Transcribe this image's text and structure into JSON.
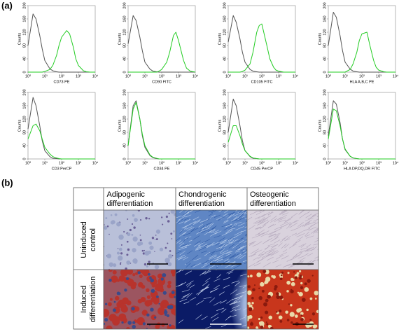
{
  "panel_labels": {
    "a": "(a)",
    "b": "(b)"
  },
  "chart_data": [
    {
      "type": "line",
      "xlabel": "CD73 PE",
      "ylabel": "Counts",
      "xscale": "log",
      "xlim": [
        1,
        10000
      ],
      "xticks": [
        {
          "value": 1,
          "label": "10⁰"
        },
        {
          "value": 10,
          "label": "10¹"
        },
        {
          "value": 100,
          "label": "10²"
        },
        {
          "value": 1000,
          "label": "10³"
        },
        {
          "value": 10000,
          "label": "10⁴"
        }
      ],
      "ylim": [
        0,
        200
      ],
      "yticks": [
        0,
        40,
        80,
        120,
        160,
        200
      ],
      "x": [
        1,
        2,
        3,
        5,
        7,
        10,
        20,
        30,
        50,
        70,
        100,
        200,
        300,
        500,
        700,
        1000,
        2000,
        3000,
        5000,
        10000
      ],
      "series": [
        {
          "color": "#555555",
          "values": [
            80,
            175,
            160,
            110,
            70,
            35,
            10,
            4,
            1,
            0,
            0,
            0,
            0,
            0,
            0,
            0,
            0,
            0,
            0,
            0
          ]
        },
        {
          "color": "#22cc22",
          "values": [
            0,
            0,
            0,
            0,
            0,
            2,
            8,
            20,
            50,
            80,
            105,
            125,
            115,
            75,
            40,
            20,
            4,
            1,
            0,
            0
          ]
        }
      ]
    },
    {
      "type": "line",
      "xlabel": "CD90 FITC",
      "ylabel": "Counts",
      "xscale": "log",
      "xlim": [
        1,
        10000
      ],
      "xticks": [
        {
          "value": 1,
          "label": "10⁰"
        },
        {
          "value": 10,
          "label": "10¹"
        },
        {
          "value": 100,
          "label": "10²"
        },
        {
          "value": 1000,
          "label": "10³"
        },
        {
          "value": 10000,
          "label": "10⁴"
        }
      ],
      "ylim": [
        0,
        200
      ],
      "yticks": [
        0,
        40,
        80,
        120,
        160,
        200
      ],
      "x": [
        1,
        2,
        3,
        5,
        7,
        10,
        20,
        30,
        50,
        70,
        100,
        200,
        300,
        500,
        700,
        1000,
        2000,
        3000,
        5000,
        10000
      ],
      "series": [
        {
          "color": "#555555",
          "values": [
            85,
            170,
            155,
            105,
            65,
            30,
            9,
            3,
            1,
            0,
            0,
            0,
            0,
            0,
            0,
            0,
            0,
            0,
            0,
            0
          ]
        },
        {
          "color": "#22cc22",
          "values": [
            0,
            0,
            0,
            0,
            0,
            0,
            0,
            0,
            0,
            3,
            8,
            30,
            60,
            110,
            120,
            95,
            35,
            12,
            3,
            0
          ]
        }
      ]
    },
    {
      "type": "line",
      "xlabel": "CD105 FITC",
      "ylabel": "Counts",
      "xscale": "log",
      "xlim": [
        1,
        10000
      ],
      "xticks": [
        {
          "value": 1,
          "label": "10⁰"
        },
        {
          "value": 10,
          "label": "10¹"
        },
        {
          "value": 100,
          "label": "10²"
        },
        {
          "value": 1000,
          "label": "10³"
        },
        {
          "value": 10000,
          "label": "10⁴"
        }
      ],
      "ylim": [
        0,
        200
      ],
      "yticks": [
        0,
        40,
        80,
        120,
        160,
        200
      ],
      "x": [
        1,
        2,
        3,
        5,
        7,
        10,
        20,
        30,
        50,
        70,
        100,
        200,
        300,
        500,
        700,
        1000,
        2000,
        3000,
        5000,
        10000
      ],
      "series": [
        {
          "color": "#555555",
          "values": [
            90,
            170,
            150,
            100,
            60,
            30,
            8,
            3,
            1,
            0,
            0,
            0,
            0,
            0,
            0,
            0,
            0,
            0,
            0,
            0
          ]
        },
        {
          "color": "#22cc22",
          "values": [
            0,
            0,
            0,
            0,
            2,
            6,
            25,
            60,
            120,
            140,
            145,
            80,
            40,
            15,
            6,
            3,
            0,
            0,
            0,
            0
          ]
        }
      ]
    },
    {
      "type": "line",
      "xlabel": "HLA A,B,C PE",
      "ylabel": "Counts",
      "xscale": "log",
      "xlim": [
        1,
        10000
      ],
      "xticks": [
        {
          "value": 1,
          "label": "10⁰"
        },
        {
          "value": 10,
          "label": "10¹"
        },
        {
          "value": 100,
          "label": "10²"
        },
        {
          "value": 1000,
          "label": "10³"
        },
        {
          "value": 10000,
          "label": "10⁴"
        }
      ],
      "ylim": [
        0,
        200
      ],
      "yticks": [
        0,
        40,
        80,
        120,
        160,
        200
      ],
      "x": [
        1,
        2,
        3,
        5,
        7,
        10,
        20,
        30,
        50,
        70,
        100,
        200,
        300,
        500,
        700,
        1000,
        2000,
        3000,
        5000,
        10000
      ],
      "series": [
        {
          "color": "#555555",
          "values": [
            80,
            180,
            165,
            110,
            65,
            30,
            9,
            3,
            1,
            0,
            0,
            0,
            0,
            0,
            0,
            0,
            0,
            0,
            0,
            0
          ]
        },
        {
          "color": "#22cc22",
          "values": [
            0,
            0,
            0,
            0,
            0,
            0,
            8,
            25,
            60,
            95,
            115,
            120,
            80,
            35,
            15,
            6,
            1,
            0,
            0,
            0
          ]
        }
      ]
    },
    {
      "type": "line",
      "xlabel": "CD3 PerCP",
      "ylabel": "Counts",
      "xscale": "log",
      "xlim": [
        1,
        10000
      ],
      "xticks": [
        {
          "value": 1,
          "label": "10⁰"
        },
        {
          "value": 10,
          "label": "10¹"
        },
        {
          "value": 100,
          "label": "10²"
        },
        {
          "value": 1000,
          "label": "10³"
        },
        {
          "value": 10000,
          "label": "10⁴"
        }
      ],
      "ylim": [
        0,
        200
      ],
      "yticks": [
        0,
        40,
        80,
        120,
        160,
        200
      ],
      "x": [
        1,
        2,
        3,
        5,
        7,
        10,
        20,
        30,
        50,
        70,
        100,
        200,
        300,
        500,
        700,
        1000,
        2000,
        3000,
        5000,
        10000
      ],
      "series": [
        {
          "color": "#555555",
          "values": [
            90,
            185,
            160,
            100,
            55,
            25,
            7,
            2,
            1,
            0,
            0,
            0,
            0,
            0,
            0,
            0,
            0,
            0,
            0,
            0
          ]
        },
        {
          "color": "#22cc22",
          "values": [
            60,
            100,
            105,
            85,
            60,
            35,
            15,
            7,
            3,
            1,
            0,
            0,
            0,
            0,
            0,
            0,
            0,
            0,
            0,
            0
          ]
        }
      ]
    },
    {
      "type": "line",
      "xlabel": "CD34 PE",
      "ylabel": "Counts",
      "xscale": "log",
      "xlim": [
        1,
        10000
      ],
      "xticks": [
        {
          "value": 1,
          "label": "10⁰"
        },
        {
          "value": 10,
          "label": "10¹"
        },
        {
          "value": 100,
          "label": "10²"
        },
        {
          "value": 1000,
          "label": "10³"
        },
        {
          "value": 10000,
          "label": "10⁴"
        }
      ],
      "ylim": [
        0,
        200
      ],
      "yticks": [
        0,
        40,
        80,
        120,
        160,
        200
      ],
      "x": [
        1,
        2,
        3,
        5,
        7,
        10,
        20,
        30,
        50,
        70,
        100,
        200,
        300,
        500,
        700,
        1000,
        2000,
        3000,
        5000,
        10000
      ],
      "series": [
        {
          "color": "#555555",
          "values": [
            40,
            160,
            175,
            120,
            70,
            35,
            10,
            4,
            1,
            0,
            0,
            0,
            0,
            0,
            0,
            0,
            0,
            0,
            0,
            0
          ]
        },
        {
          "color": "#22cc22",
          "values": [
            40,
            150,
            170,
            120,
            75,
            40,
            12,
            5,
            2,
            0,
            0,
            0,
            0,
            0,
            0,
            0,
            0,
            0,
            0,
            0
          ]
        }
      ]
    },
    {
      "type": "line",
      "xlabel": "CD45 PerCP",
      "ylabel": "Counts",
      "xscale": "log",
      "xlim": [
        1,
        10000
      ],
      "xticks": [
        {
          "value": 1,
          "label": "10⁰"
        },
        {
          "value": 10,
          "label": "10¹"
        },
        {
          "value": 100,
          "label": "10²"
        },
        {
          "value": 1000,
          "label": "10³"
        },
        {
          "value": 10000,
          "label": "10⁴"
        }
      ],
      "ylim": [
        0,
        200
      ],
      "yticks": [
        0,
        40,
        80,
        120,
        160,
        200
      ],
      "x": [
        1,
        2,
        3,
        5,
        7,
        10,
        20,
        30,
        50,
        70,
        100,
        200,
        300,
        500,
        700,
        1000,
        2000,
        3000,
        5000,
        10000
      ],
      "series": [
        {
          "color": "#555555",
          "values": [
            80,
            180,
            160,
            100,
            55,
            25,
            7,
            2,
            1,
            0,
            0,
            0,
            0,
            0,
            0,
            0,
            0,
            0,
            0,
            0
          ]
        },
        {
          "color": "#22cc22",
          "values": [
            50,
            100,
            100,
            70,
            45,
            25,
            8,
            3,
            1,
            0,
            0,
            0,
            0,
            0,
            0,
            0,
            0,
            0,
            0,
            0
          ]
        }
      ]
    },
    {
      "type": "line",
      "xlabel": "HLA DP,DQ,DR FITC",
      "ylabel": "Counts",
      "xscale": "log",
      "xlim": [
        1,
        10000
      ],
      "xticks": [
        {
          "value": 1,
          "label": "10⁰"
        },
        {
          "value": 10,
          "label": "10¹"
        },
        {
          "value": 100,
          "label": "10²"
        },
        {
          "value": 1000,
          "label": "10³"
        },
        {
          "value": 10000,
          "label": "10⁴"
        }
      ],
      "ylim": [
        0,
        200
      ],
      "yticks": [
        0,
        40,
        80,
        120,
        160,
        200
      ],
      "x": [
        1,
        2,
        3,
        5,
        7,
        10,
        20,
        30,
        50,
        70,
        100,
        200,
        300,
        500,
        700,
        1000,
        2000,
        3000,
        5000,
        10000
      ],
      "series": [
        {
          "color": "#555555",
          "values": [
            70,
            175,
            165,
            110,
            60,
            28,
            8,
            3,
            1,
            0,
            0,
            0,
            0,
            0,
            0,
            0,
            0,
            0,
            0,
            0
          ]
        },
        {
          "color": "#22cc22",
          "values": [
            60,
            150,
            145,
            100,
            60,
            30,
            8,
            3,
            1,
            0,
            0,
            0,
            0,
            0,
            0,
            0,
            0,
            0,
            0,
            0
          ]
        }
      ]
    }
  ],
  "table": {
    "columns": [
      "Adipogenic differentiation",
      "Chondrogenic differentiation",
      "Osteogenic differentiation"
    ],
    "rows": [
      "Uninduced control",
      "Induced differentiation"
    ]
  }
}
